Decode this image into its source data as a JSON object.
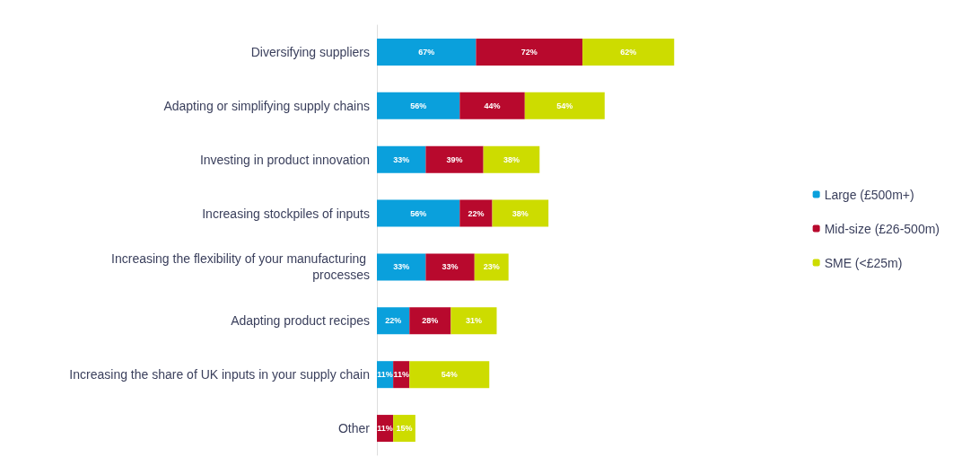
{
  "chart_data": {
    "type": "bar",
    "orientation": "horizontal",
    "stacked": true,
    "legend": "right",
    "categories": [
      "Diversifying suppliers",
      "Adapting or simplifying supply chains",
      "Investing in product innovation",
      "Increasing stockpiles of inputs",
      "Increasing the flexibility of your manufacturing processes",
      "Adapting product recipes",
      "Increasing the share of UK inputs in your supply chain",
      "Other"
    ],
    "series": [
      {
        "name": "Large (£500m+)",
        "color": "#0aa0dc",
        "values": [
          67,
          56,
          33,
          56,
          33,
          22,
          11,
          null
        ],
        "value_labels": [
          "67%",
          "56%",
          "33%",
          "56%",
          "33%",
          "22%",
          "11%",
          null
        ]
      },
      {
        "name": "Mid-size (£26-500m)",
        "color": "#b8092d",
        "values": [
          72,
          44,
          39,
          22,
          33,
          28,
          11,
          11
        ],
        "value_labels": [
          "72%",
          "44%",
          "39%",
          "22%",
          "33%",
          "28%",
          "11%",
          "11%"
        ]
      },
      {
        "name": "SME (<£25m)",
        "color": "#cddc00",
        "values": [
          62,
          54,
          38,
          38,
          23,
          31,
          54,
          15
        ],
        "value_labels": [
          "62%",
          "54%",
          "38%",
          "38%",
          "23%",
          "31%",
          "54%",
          "15%"
        ]
      }
    ]
  }
}
